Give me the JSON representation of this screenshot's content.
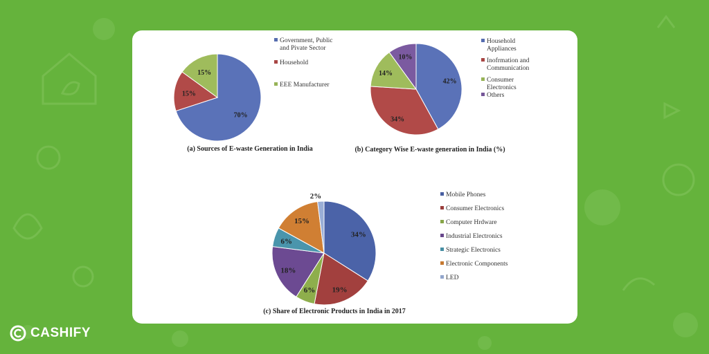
{
  "brand": {
    "name": "CASHIFY"
  },
  "colors": {
    "background": "#65b33c",
    "card": "#ffffff"
  },
  "chart_data": [
    {
      "type": "pie",
      "title": "(a) Sources of E-waste Generation in India",
      "categories": [
        "Government, Public and Pivate Sector",
        "Household",
        "EEE Manufacturer"
      ],
      "values": [
        70,
        15,
        15
      ],
      "labels": [
        "70%",
        "15%",
        "15%"
      ],
      "colors": [
        "#5a72b8",
        "#b14a48",
        "#9fbc5c"
      ],
      "legend_lines": [
        [
          "Government, Public",
          "and Pivate Sector"
        ],
        [
          "Household"
        ],
        [
          "EEE Manufacturer"
        ]
      ],
      "legend": "right"
    },
    {
      "type": "pie",
      "title": "(b) Category Wise E-waste generation  in India (%)",
      "categories": [
        "Household Appliances",
        "Inofrmation and Communication",
        "Consumer Electronics",
        "Others"
      ],
      "values": [
        42,
        34,
        14,
        10
      ],
      "labels": [
        "42%",
        "34%",
        "14%",
        "10%"
      ],
      "colors": [
        "#5a72b8",
        "#b14a48",
        "#9fbc5c",
        "#7b5aa0"
      ],
      "legend_lines": [
        [
          "Household",
          "Appliances"
        ],
        [
          "Inofrmation and",
          "Communication"
        ],
        [
          "Consumer",
          "Electronics"
        ],
        [
          "Others"
        ]
      ],
      "legend": "right"
    },
    {
      "type": "pie",
      "title": "(c) Share of Electronic Products in India in 2017",
      "categories": [
        "Mobile Phones",
        "Consumer Electronics",
        "Computer Hrdware",
        "Industrial Electronics",
        "Strategic Electronics",
        "Electronic  Components",
        "LED"
      ],
      "values": [
        34,
        19,
        6,
        18,
        6,
        15,
        2
      ],
      "labels": [
        "34%",
        "19%",
        "6%",
        "18%",
        "6%",
        "15%",
        "2%"
      ],
      "colors": [
        "#4b63a8",
        "#a2403e",
        "#8eae4c",
        "#6c4a92",
        "#4a95ac",
        "#d07f33",
        "#9aaed6"
      ],
      "legend_lines": [
        [
          "Mobile Phones"
        ],
        [
          "Consumer Electronics"
        ],
        [
          "Computer Hrdware"
        ],
        [
          "Industrial Electronics"
        ],
        [
          "Strategic Electronics"
        ],
        [
          "Electronic  Components"
        ],
        [
          "LED"
        ]
      ],
      "legend": "right"
    }
  ]
}
